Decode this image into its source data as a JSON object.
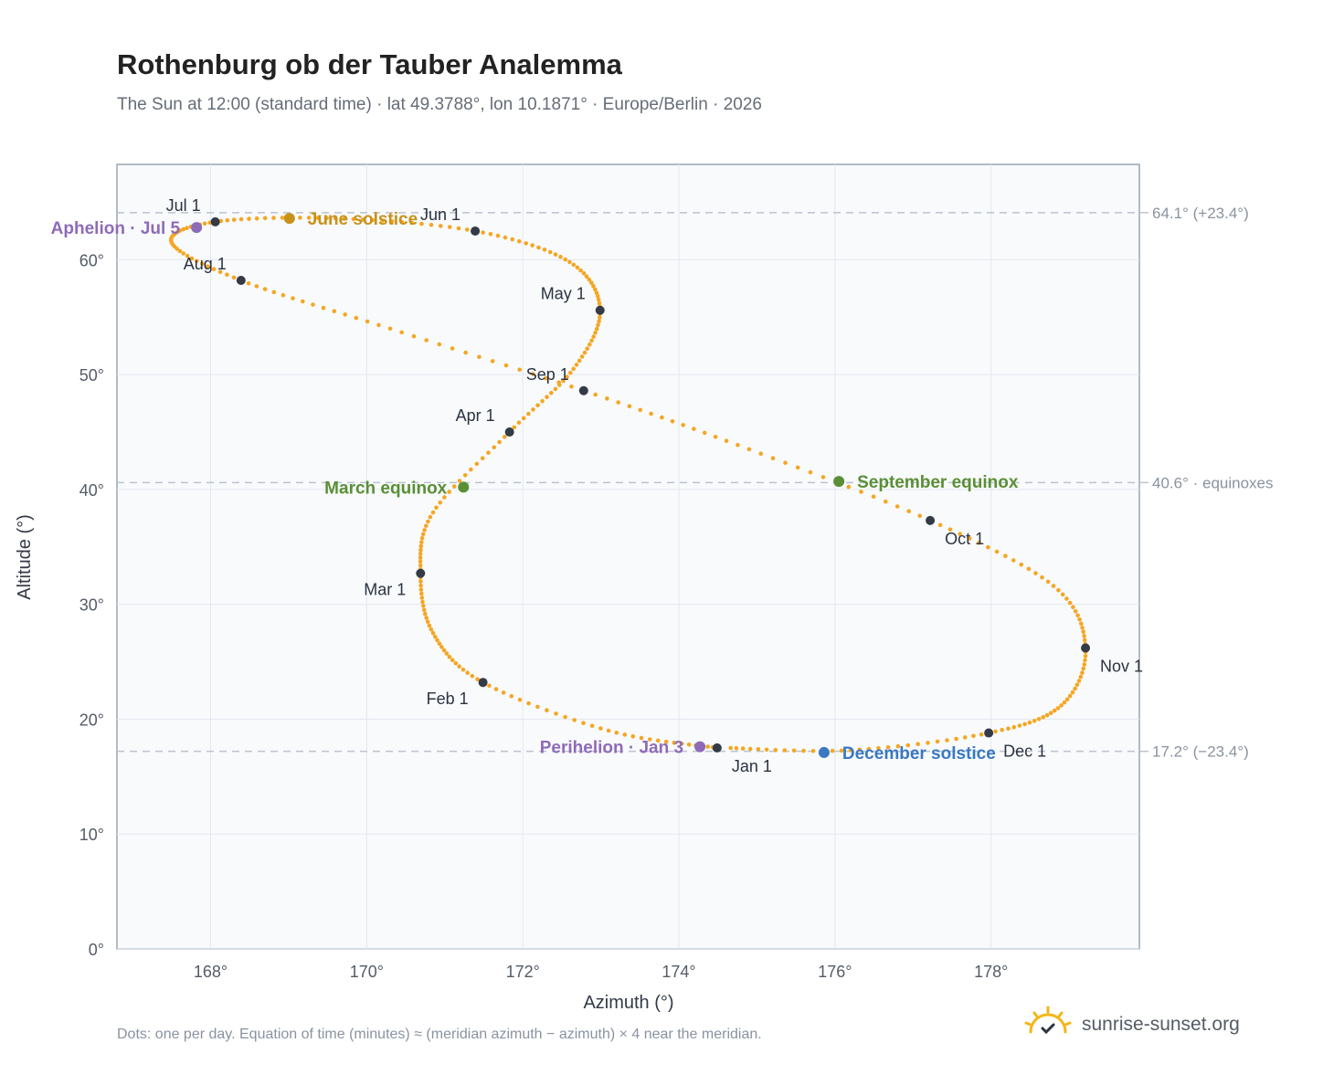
{
  "page": {
    "title": "Rothenburg ob der Tauber Analemma",
    "subtitle": "The Sun at 12:00 (standard time) · lat 49.3788°, lon 10.1871° · Europe/Berlin · 2026",
    "footnote": "Dots: one per day. Equation of time (minutes) ≈ (meridian azimuth − azimuth) × 4 near the meridian.",
    "brand": "sunrise-sunset.org",
    "brand_icon": "sun-logo-icon"
  },
  "colors": {
    "curve": "#f5a623",
    "month_marker": "#343a46",
    "june_solstice": "#c8921a",
    "december_solstice": "#3a78c2",
    "equinox": "#5a8f35",
    "apsis": "#8e6bb8",
    "plot_bg": "#f8fafc",
    "grid": "#e3e8ef",
    "ref_line": "#bcc4ce"
  },
  "chart_data": {
    "type": "scatter",
    "xlabel": "Azimuth (°)",
    "ylabel": "Altitude (°)",
    "xlim": [
      166.8,
      179.9
    ],
    "ylim": [
      0,
      68.3
    ],
    "xticks": [
      168,
      170,
      172,
      174,
      176,
      178
    ],
    "xtick_labels": [
      "168°",
      "170°",
      "172°",
      "174°",
      "176°",
      "178°"
    ],
    "yticks": [
      0,
      10,
      20,
      30,
      40,
      50,
      60
    ],
    "ytick_labels": [
      "0°",
      "10°",
      "20°",
      "30°",
      "40°",
      "50°",
      "60°"
    ],
    "grid": true,
    "reference_lines": [
      {
        "y": 64.1,
        "label": "64.1° (+23.4°)"
      },
      {
        "y": 40.6,
        "label": "40.6° · equinoxes"
      },
      {
        "y": 17.2,
        "label": "17.2° (−23.4°)"
      }
    ],
    "month_markers": [
      {
        "label": "Jan 1",
        "x": 174.49,
        "y": 17.5,
        "label_pos": "below-right"
      },
      {
        "label": "Feb 1",
        "x": 171.49,
        "y": 23.2,
        "label_pos": "below-left"
      },
      {
        "label": "Mar 1",
        "x": 170.69,
        "y": 32.7,
        "label_pos": "below-left"
      },
      {
        "label": "Apr 1",
        "x": 171.83,
        "y": 45.0,
        "label_pos": "above-left"
      },
      {
        "label": "May 1",
        "x": 172.99,
        "y": 55.6,
        "label_pos": "above-left"
      },
      {
        "label": "Jun 1",
        "x": 171.39,
        "y": 62.5,
        "label_pos": "above-left"
      },
      {
        "label": "Jul 1",
        "x": 168.06,
        "y": 63.3,
        "label_pos": "above-left"
      },
      {
        "label": "Aug 1",
        "x": 168.39,
        "y": 58.2,
        "label_pos": "above-left"
      },
      {
        "label": "Sep 1",
        "x": 172.78,
        "y": 48.6,
        "label_pos": "above-left"
      },
      {
        "label": "Oct 1",
        "x": 177.22,
        "y": 37.3,
        "label_pos": "below-right"
      },
      {
        "label": "Nov 1",
        "x": 179.21,
        "y": 26.2,
        "label_pos": "below-right"
      },
      {
        "label": "Dec 1",
        "x": 177.97,
        "y": 18.8,
        "label_pos": "below-right"
      }
    ],
    "events": [
      {
        "label": "June solstice",
        "x": 169.01,
        "y": 63.6,
        "color_key": "june_solstice",
        "label_pos": "right"
      },
      {
        "label": "December solstice",
        "x": 175.86,
        "y": 17.1,
        "color_key": "december_solstice",
        "label_pos": "right"
      },
      {
        "label": "March equinox",
        "x": 171.24,
        "y": 40.2,
        "color_key": "equinox",
        "label_pos": "left"
      },
      {
        "label": "September equinox",
        "x": 176.05,
        "y": 40.7,
        "color_key": "equinox",
        "label_pos": "right"
      },
      {
        "label": "Aphelion · Jul 5",
        "x": 167.82,
        "y": 62.8,
        "color_key": "apsis",
        "label_pos": "left"
      },
      {
        "label": "Perihelion · Jan 3",
        "x": 174.27,
        "y": 17.6,
        "color_key": "apsis",
        "label_pos": "left"
      }
    ],
    "path_control_points": [
      {
        "date": "Jan 1",
        "x": 174.49,
        "y": 17.5
      },
      {
        "date": "Jan 15",
        "x": 173.1,
        "y": 19.0
      },
      {
        "date": "Feb 1",
        "x": 171.49,
        "y": 23.2
      },
      {
        "date": "Feb 15",
        "x": 170.85,
        "y": 27.5
      },
      {
        "date": "Mar 1",
        "x": 170.69,
        "y": 32.7
      },
      {
        "date": "Mar 15",
        "x": 170.85,
        "y": 38.0
      },
      {
        "date": "Apr 1",
        "x": 171.83,
        "y": 45.0
      },
      {
        "date": "Apr 15",
        "x": 172.65,
        "y": 50.5
      },
      {
        "date": "May 1",
        "x": 172.99,
        "y": 55.6
      },
      {
        "date": "May 15",
        "x": 172.6,
        "y": 59.8
      },
      {
        "date": "Jun 1",
        "x": 171.39,
        "y": 62.5
      },
      {
        "date": "Jun 15",
        "x": 169.6,
        "y": 63.6
      },
      {
        "date": "Jul 1",
        "x": 168.06,
        "y": 63.3
      },
      {
        "date": "Jul 15",
        "x": 167.5,
        "y": 61.5
      },
      {
        "date": "Aug 1",
        "x": 168.39,
        "y": 58.2
      },
      {
        "date": "Aug 15",
        "x": 170.3,
        "y": 54.0
      },
      {
        "date": "Sep 1",
        "x": 172.78,
        "y": 48.6
      },
      {
        "date": "Sep 15",
        "x": 174.9,
        "y": 43.5
      },
      {
        "date": "Oct 1",
        "x": 177.22,
        "y": 37.3
      },
      {
        "date": "Oct 15",
        "x": 178.8,
        "y": 31.6
      },
      {
        "date": "Nov 1",
        "x": 179.21,
        "y": 26.2
      },
      {
        "date": "Nov 15",
        "x": 178.9,
        "y": 21.2
      },
      {
        "date": "Dec 1",
        "x": 177.97,
        "y": 18.8
      },
      {
        "date": "Dec 15",
        "x": 176.2,
        "y": 17.3
      },
      {
        "date": "Dec 31",
        "x": 174.6,
        "y": 17.5
      }
    ]
  }
}
